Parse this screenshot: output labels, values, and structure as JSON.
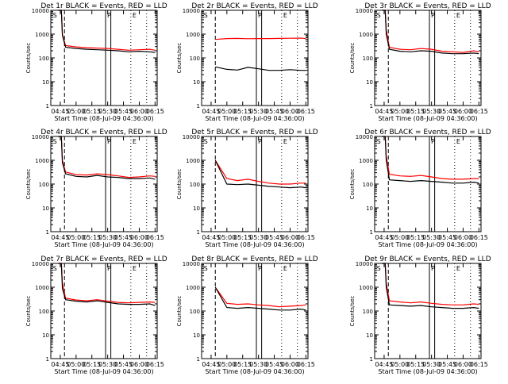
{
  "title": "",
  "colors": {
    "events": "#000000",
    "lld": "#ff0000",
    "axis": "#000000"
  },
  "common": {
    "xlabel": "Start Time (08-Jul-09 04:36:00)",
    "ylabel": "Counts/sec",
    "xticks": [
      "04:45",
      "05:00",
      "05:15",
      "05:30",
      "05:45",
      "06:00",
      "06:15"
    ],
    "yticks": [
      "1",
      "10",
      "100",
      "1000",
      "10000"
    ],
    "markers": [
      "S",
      "P",
      "E"
    ],
    "yscale": "log",
    "ylim": [
      1,
      10000
    ]
  },
  "chart_data": [
    {
      "type": "line",
      "title": "Det 1r BLACK = Events, RED = LLD",
      "x": [
        "04:43",
        "04:46",
        "04:47",
        "04:50",
        "05:00",
        "05:10",
        "05:20",
        "05:30",
        "05:40",
        "05:50",
        "06:00",
        "06:10",
        "06:15"
      ],
      "series": [
        {
          "name": "LLD",
          "values": [
            10000,
            10000,
            1000,
            330,
            290,
            270,
            260,
            250,
            230,
            210,
            220,
            230,
            210
          ]
        },
        {
          "name": "Events",
          "values": [
            10000,
            10000,
            900,
            280,
            250,
            230,
            220,
            210,
            200,
            180,
            190,
            180,
            170
          ]
        }
      ],
      "vlines_dashed": [
        "04:49"
      ],
      "vlines_solid": [
        "05:28",
        "05:33"
      ],
      "vlines_dotted": [
        "05:52",
        "06:07"
      ],
      "ylim": [
        1,
        10000
      ]
    },
    {
      "type": "line",
      "title": "Det 2r BLACK = Events, RED = LLD",
      "x": [
        "04:49",
        "05:00",
        "05:10",
        "05:20",
        "05:30",
        "05:40",
        "05:50",
        "06:00",
        "06:10",
        "06:15"
      ],
      "series": [
        {
          "name": "LLD",
          "values": [
            600,
            650,
            660,
            640,
            650,
            650,
            660,
            670,
            680,
            650
          ]
        },
        {
          "name": "Events",
          "values": [
            42,
            33,
            31,
            40,
            35,
            30,
            30,
            32,
            30,
            30
          ]
        }
      ],
      "vlines_dashed": [
        "04:49"
      ],
      "vlines_solid": [
        "05:28",
        "05:33"
      ],
      "vlines_dotted": [
        "05:52",
        "06:07"
      ],
      "ylim": [
        1,
        10000
      ]
    },
    {
      "type": "line",
      "title": "Det 3r BLACK = Events, RED = LLD",
      "x": [
        "04:43",
        "04:46",
        "04:47",
        "04:50",
        "05:00",
        "05:10",
        "05:20",
        "05:30",
        "05:40",
        "05:50",
        "06:00",
        "06:10",
        "06:15"
      ],
      "series": [
        {
          "name": "LLD",
          "values": [
            10000,
            10000,
            1500,
            280,
            230,
            220,
            250,
            230,
            190,
            180,
            170,
            200,
            180
          ]
        },
        {
          "name": "Events",
          "values": [
            10000,
            10000,
            1000,
            230,
            190,
            180,
            200,
            190,
            160,
            150,
            150,
            160,
            150
          ]
        }
      ],
      "vlines_dashed": [
        "04:49"
      ],
      "vlines_solid": [
        "05:28",
        "05:33"
      ],
      "vlines_dotted": [
        "05:52",
        "06:07"
      ],
      "ylim": [
        1,
        10000
      ]
    },
    {
      "type": "line",
      "title": "Det 4r BLACK = Events, RED = LLD",
      "x": [
        "04:43",
        "04:46",
        "04:47",
        "04:50",
        "05:00",
        "05:10",
        "05:20",
        "05:30",
        "05:40",
        "05:50",
        "06:00",
        "06:10",
        "06:15"
      ],
      "series": [
        {
          "name": "LLD",
          "values": [
            10000,
            10000,
            1000,
            320,
            250,
            240,
            270,
            250,
            220,
            190,
            200,
            220,
            210
          ]
        },
        {
          "name": "Events",
          "values": [
            10000,
            10000,
            800,
            270,
            210,
            200,
            230,
            200,
            190,
            170,
            170,
            180,
            160
          ]
        }
      ],
      "vlines_dashed": [
        "04:49"
      ],
      "vlines_solid": [
        "05:28",
        "05:33"
      ],
      "vlines_dotted": [
        "05:52",
        "06:07"
      ],
      "ylim": [
        1,
        10000
      ]
    },
    {
      "type": "line",
      "title": "Det 5r BLACK = Events, RED = LLD",
      "x": [
        "04:49",
        "05:00",
        "05:10",
        "05:20",
        "05:30",
        "05:40",
        "05:50",
        "06:00",
        "06:10",
        "06:15"
      ],
      "series": [
        {
          "name": "LLD",
          "values": [
            1000,
            170,
            140,
            160,
            130,
            110,
            100,
            100,
            110,
            110
          ]
        },
        {
          "name": "Events",
          "values": [
            1000,
            100,
            95,
            100,
            90,
            80,
            75,
            70,
            75,
            70
          ]
        }
      ],
      "vlines_dashed": [
        "04:49"
      ],
      "vlines_solid": [
        "05:28",
        "05:33"
      ],
      "vlines_dotted": [
        "05:52",
        "06:07"
      ],
      "ylim": [
        1,
        10000
      ]
    },
    {
      "type": "line",
      "title": "Det 6r BLACK = Events, RED = LLD",
      "x": [
        "04:43",
        "04:46",
        "04:47",
        "04:50",
        "05:00",
        "05:10",
        "05:20",
        "05:30",
        "05:40",
        "05:50",
        "06:00",
        "06:10",
        "06:15"
      ],
      "series": [
        {
          "name": "LLD",
          "values": [
            10000,
            10000,
            1500,
            260,
            220,
            210,
            230,
            200,
            170,
            160,
            160,
            170,
            170
          ]
        },
        {
          "name": "Events",
          "values": [
            10000,
            10000,
            1000,
            150,
            140,
            130,
            140,
            130,
            120,
            110,
            110,
            120,
            110
          ]
        }
      ],
      "vlines_dashed": [
        "04:49"
      ],
      "vlines_solid": [
        "05:28",
        "05:33"
      ],
      "vlines_dotted": [
        "05:52",
        "06:07"
      ],
      "ylim": [
        1,
        10000
      ]
    },
    {
      "type": "line",
      "title": "Det 7r BLACK = Events, RED = LLD",
      "x": [
        "04:43",
        "04:46",
        "04:47",
        "04:50",
        "05:00",
        "05:10",
        "05:20",
        "05:30",
        "05:40",
        "05:50",
        "06:00",
        "06:10",
        "06:15"
      ],
      "series": [
        {
          "name": "LLD",
          "values": [
            10000,
            10000,
            1500,
            350,
            290,
            270,
            300,
            260,
            230,
            220,
            230,
            240,
            230
          ]
        },
        {
          "name": "Events",
          "values": [
            10000,
            10000,
            900,
            300,
            260,
            240,
            270,
            230,
            200,
            190,
            190,
            200,
            170
          ]
        }
      ],
      "vlines_dashed": [
        "04:49"
      ],
      "vlines_solid": [
        "05:28",
        "05:33"
      ],
      "vlines_dotted": [
        "05:52",
        "06:07"
      ],
      "ylim": [
        1,
        10000
      ]
    },
    {
      "type": "line",
      "title": "Det 8r BLACK = Events, RED = LLD",
      "x": [
        "04:49",
        "05:00",
        "05:10",
        "05:20",
        "05:30",
        "05:40",
        "05:50",
        "06:00",
        "06:10",
        "06:15"
      ],
      "series": [
        {
          "name": "LLD",
          "values": [
            1000,
            210,
            190,
            200,
            180,
            170,
            150,
            160,
            170,
            180
          ]
        },
        {
          "name": "Events",
          "values": [
            1000,
            140,
            130,
            140,
            130,
            120,
            110,
            110,
            120,
            110
          ]
        }
      ],
      "vlines_dashed": [
        "04:49"
      ],
      "vlines_solid": [
        "05:28",
        "05:33"
      ],
      "vlines_dotted": [
        "05:52",
        "06:07"
      ],
      "ylim": [
        1,
        10000
      ]
    },
    {
      "type": "line",
      "title": "Det 9r BLACK = Events, RED = LLD",
      "x": [
        "04:43",
        "04:46",
        "04:47",
        "04:50",
        "05:00",
        "05:10",
        "05:20",
        "05:30",
        "05:40",
        "05:50",
        "06:00",
        "06:10",
        "06:15"
      ],
      "series": [
        {
          "name": "LLD",
          "values": [
            10000,
            10000,
            1500,
            270,
            240,
            220,
            240,
            210,
            190,
            180,
            180,
            200,
            190
          ]
        },
        {
          "name": "Events",
          "values": [
            10000,
            10000,
            1000,
            180,
            170,
            160,
            170,
            150,
            140,
            130,
            130,
            140,
            130
          ]
        }
      ],
      "vlines_dashed": [
        "04:49"
      ],
      "vlines_solid": [
        "05:28",
        "05:33"
      ],
      "vlines_dotted": [
        "05:52",
        "06:07"
      ],
      "ylim": [
        1,
        10000
      ]
    }
  ]
}
